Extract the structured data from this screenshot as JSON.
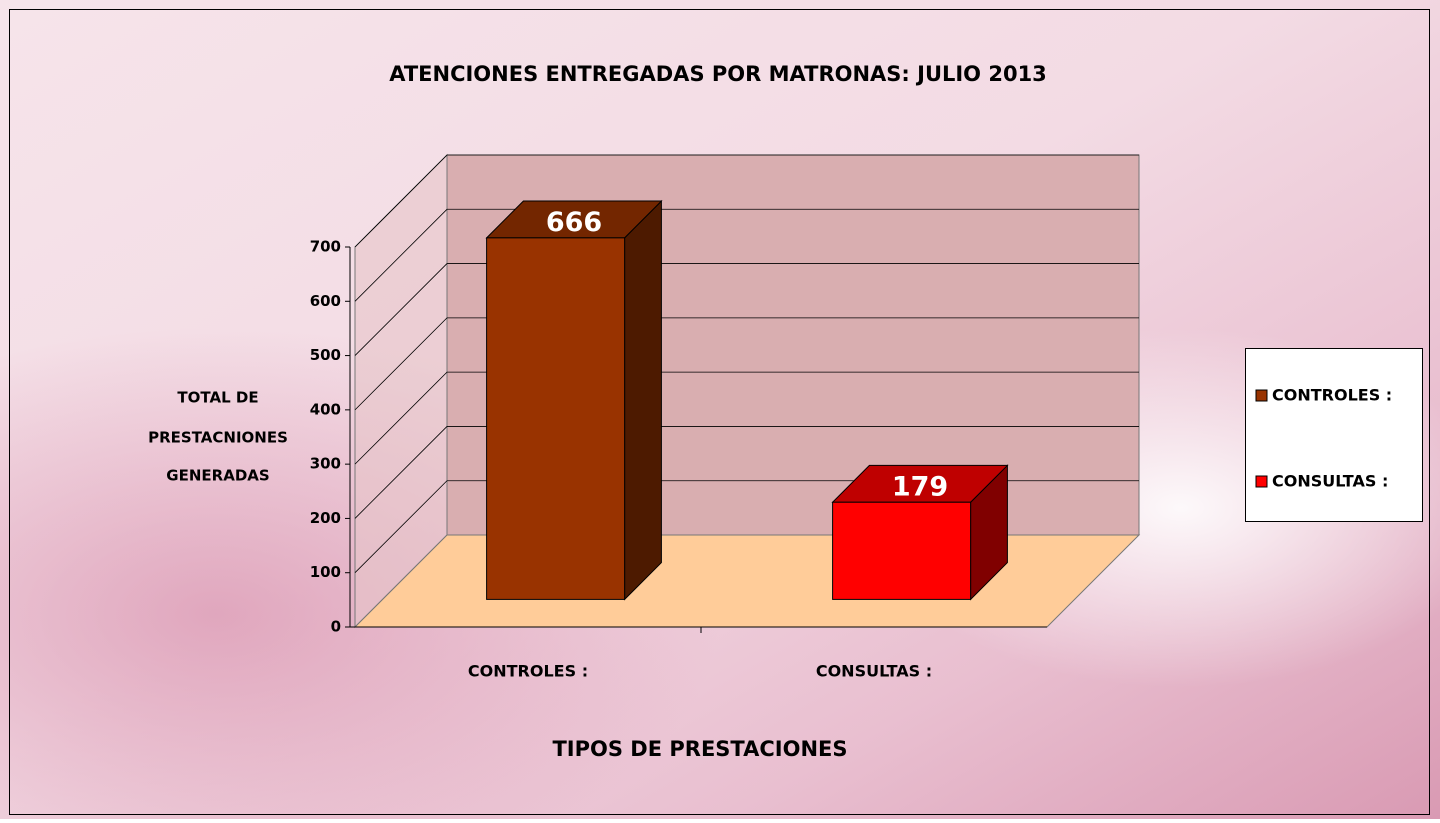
{
  "chart_data": {
    "type": "bar3d",
    "title": "ATENCIONES  ENTREGADAS POR  MATRONAS:  JULIO  2013",
    "ylabel": [
      "TOTAL DE",
      "PRESTACNIONES",
      "GENERADAS"
    ],
    "xlabel": "TIPOS  DE PRESTACIONES",
    "categories": [
      "CONTROLES :",
      "CONSULTAS :"
    ],
    "values": [
      666,
      179
    ],
    "colors": [
      "#993300",
      "#ff0000"
    ],
    "ylim": [
      0,
      700
    ],
    "yticks": [
      0,
      100,
      200,
      300,
      400,
      500,
      600,
      700
    ],
    "grid": true,
    "legend": "right"
  }
}
